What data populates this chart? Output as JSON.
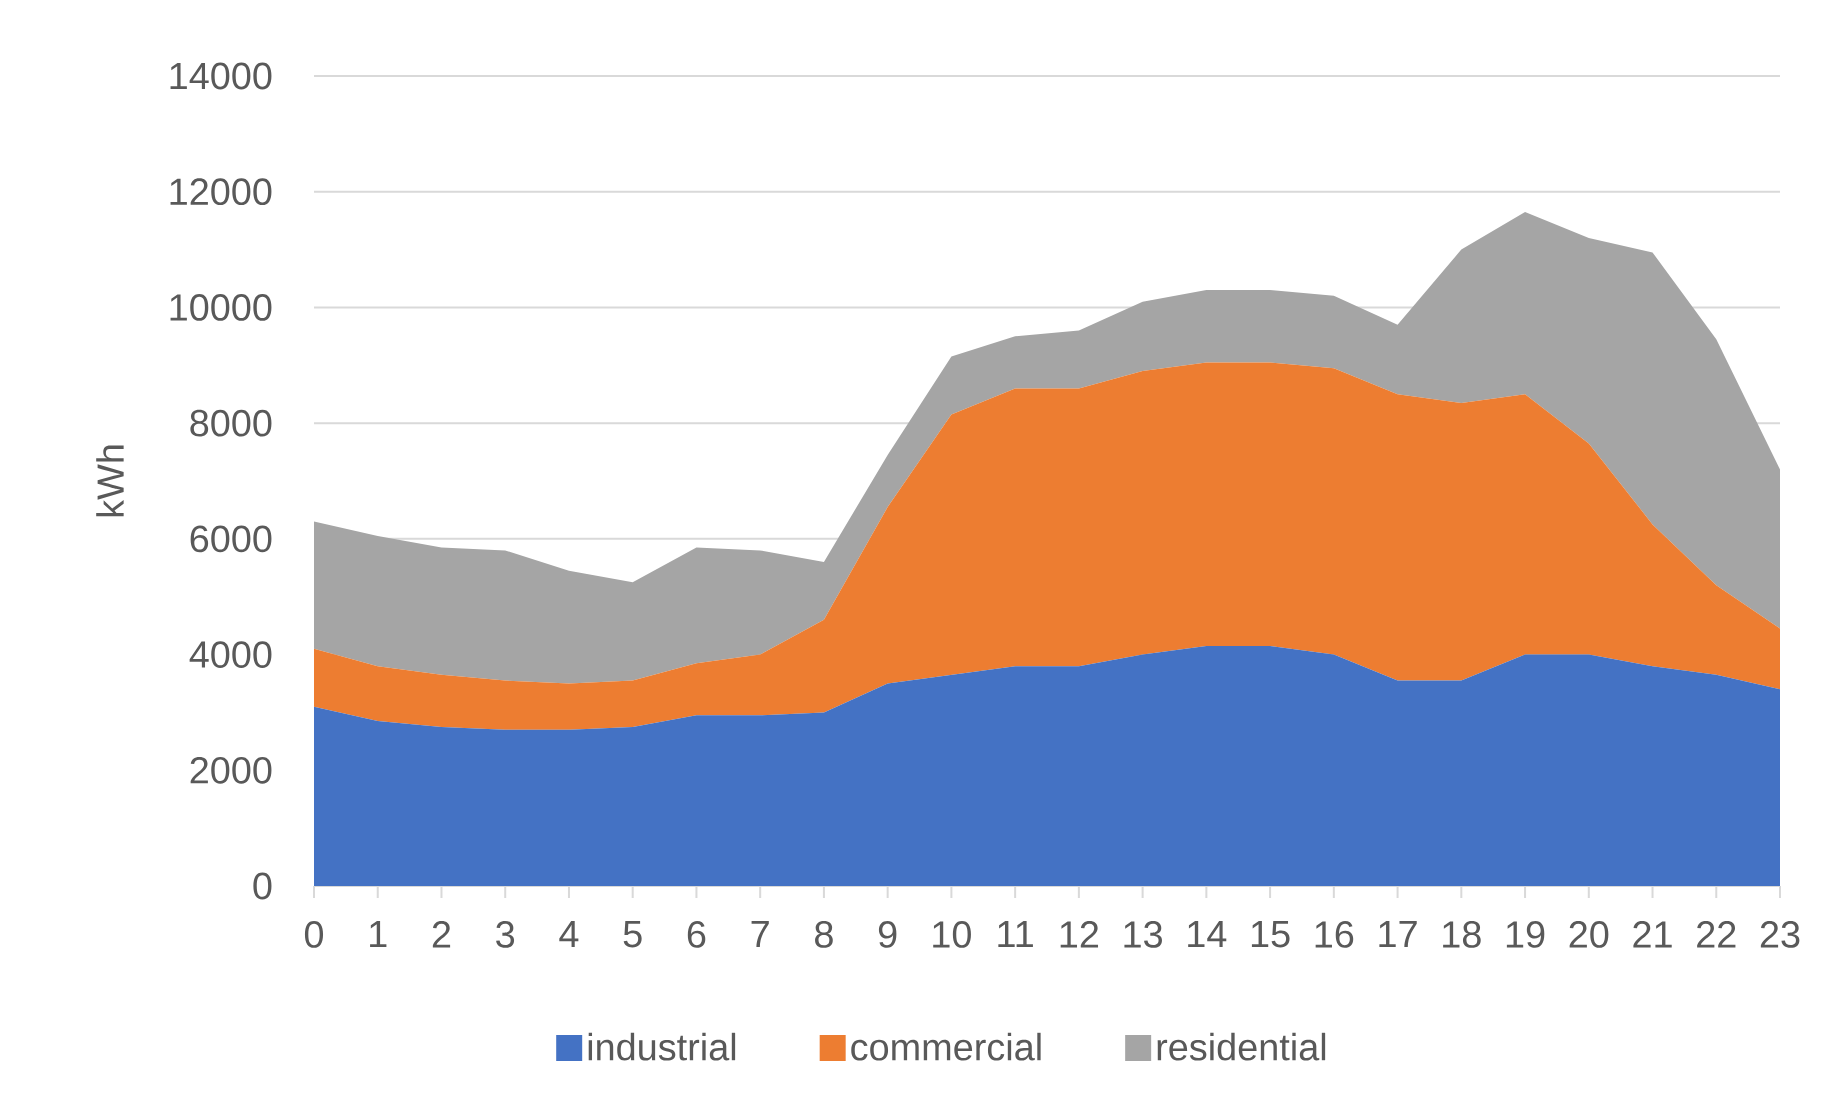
{
  "chart_data": {
    "type": "area",
    "stacked": true,
    "ylabel": "kWh",
    "categories": [
      "0",
      "1",
      "2",
      "3",
      "4",
      "5",
      "6",
      "7",
      "8",
      "9",
      "10",
      "11",
      "12",
      "13",
      "14",
      "15",
      "16",
      "17",
      "18",
      "19",
      "20",
      "21",
      "22",
      "23"
    ],
    "series": [
      {
        "name": "industrial",
        "color": "#4472c4",
        "values": [
          3100,
          2850,
          2750,
          2700,
          2700,
          2750,
          2950,
          2950,
          3000,
          3500,
          3650,
          3800,
          3800,
          4000,
          4150,
          4150,
          4000,
          3550,
          3550,
          4000,
          4000,
          3800,
          3650,
          3400
        ]
      },
      {
        "name": "commercial",
        "color": "#ed7d31",
        "values": [
          1000,
          950,
          900,
          850,
          800,
          800,
          900,
          1050,
          1600,
          3050,
          4500,
          4800,
          4800,
          4900,
          4900,
          4900,
          4950,
          4950,
          4800,
          4500,
          3650,
          2450,
          1550,
          1050
        ]
      },
      {
        "name": "residential",
        "color": "#a5a5a5",
        "values": [
          2200,
          2250,
          2200,
          2250,
          1950,
          1700,
          2000,
          1800,
          1000,
          900,
          1000,
          900,
          1000,
          1200,
          1250,
          1250,
          1250,
          1200,
          2650,
          3150,
          3550,
          4700,
          4250,
          2750
        ]
      }
    ],
    "ylim": [
      0,
      14000
    ],
    "yticks": [
      0,
      2000,
      4000,
      6000,
      8000,
      10000,
      12000,
      14000
    ],
    "grid": "y",
    "legend": "bottom"
  }
}
